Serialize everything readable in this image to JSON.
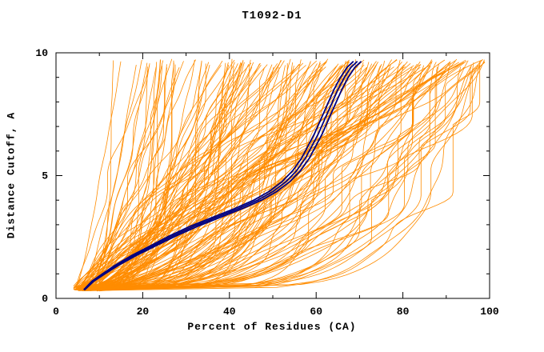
{
  "chart_data": {
    "type": "line",
    "title": "T1092-D1",
    "xlabel": "Percent of Residues (CA)",
    "ylabel": "Distance Cutoff, A",
    "xlim": [
      0,
      100
    ],
    "ylim": [
      0,
      10
    ],
    "grid": false,
    "legend": "none",
    "colors": {
      "ensemble": "#ff8c00",
      "highlight": "#000080",
      "axis": "#000000"
    },
    "x_axis": {
      "major_ticks": [
        {
          "value": 0,
          "label": "0"
        },
        {
          "value": 20,
          "label": "20"
        },
        {
          "value": 40,
          "label": "40"
        },
        {
          "value": 60,
          "label": "60"
        },
        {
          "value": 80,
          "label": "80"
        },
        {
          "value": 100,
          "label": "100"
        }
      ],
      "minor_ticks": [
        10,
        30,
        50,
        70,
        90
      ]
    },
    "y_axis": {
      "major_ticks": [
        {
          "value": 0,
          "label": "0"
        },
        {
          "value": 5,
          "label": "5"
        },
        {
          "value": 10,
          "label": "10"
        }
      ],
      "minor_ticks": [
        1,
        2,
        3,
        4,
        6,
        7,
        8,
        9
      ]
    },
    "ensemble": {
      "description": "orange server-model cumulative curves (percent of CA residues under distance cutoff)",
      "n_curves": 175,
      "seed": 1092,
      "x_start_range": [
        4,
        10
      ],
      "x_end_range": [
        12,
        99
      ],
      "x_end_bias": 0.72,
      "shape_exponent_range": [
        0.14,
        1.15
      ],
      "shape_exponent_bias": 1.4,
      "y_start_range": [
        0.3,
        0.5
      ],
      "y_end_range": [
        9.4,
        9.75
      ],
      "wobble_frac_range": [
        0.02,
        0.09
      ],
      "line_width": 0.8
    },
    "highlight": {
      "description": "navy best-model curve bundle",
      "offsets": [
        -0.9,
        0,
        0.9
      ],
      "line_width": 1.8,
      "points": [
        [
          6.5,
          0.35
        ],
        [
          8.5,
          0.7
        ],
        [
          11,
          1.0
        ],
        [
          14,
          1.35
        ],
        [
          18,
          1.75
        ],
        [
          22.5,
          2.15
        ],
        [
          27,
          2.55
        ],
        [
          32,
          2.95
        ],
        [
          37,
          3.3
        ],
        [
          42,
          3.65
        ],
        [
          46.5,
          4.0
        ],
        [
          50,
          4.35
        ],
        [
          53,
          4.75
        ],
        [
          55.5,
          5.2
        ],
        [
          57.5,
          5.7
        ],
        [
          59,
          6.2
        ],
        [
          60.5,
          6.7
        ],
        [
          62,
          7.3
        ],
        [
          63.5,
          7.9
        ],
        [
          65,
          8.5
        ],
        [
          66.5,
          9.0
        ],
        [
          68,
          9.4
        ],
        [
          69.5,
          9.65
        ]
      ]
    }
  }
}
